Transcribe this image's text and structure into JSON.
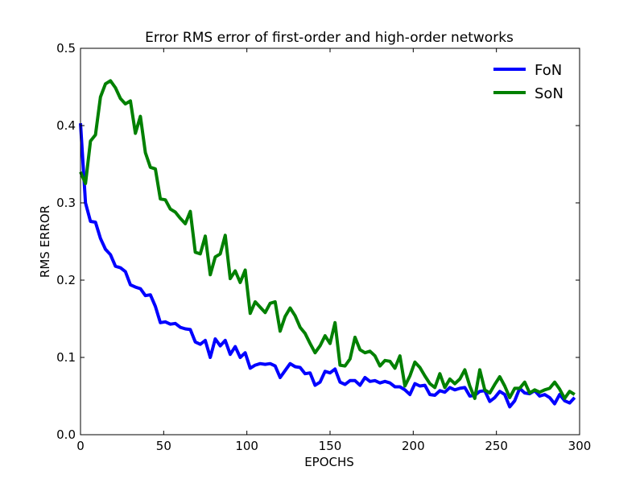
{
  "chart_data": {
    "type": "line",
    "title": "Error RMS error of first-order and high-order networks",
    "xlabel": "EPOCHS",
    "ylabel": "RMS ERROR",
    "xlim": [
      0,
      300
    ],
    "ylim": [
      0,
      0.5
    ],
    "xticks": [
      "0",
      "50",
      "100",
      "150",
      "200",
      "250",
      "300"
    ],
    "yticks": [
      "0.0",
      "0.1",
      "0.2",
      "0.3",
      "0.4",
      "0.5"
    ],
    "grid": false,
    "legend_position": "top-right",
    "series": [
      {
        "name": "FoN",
        "color": "#0000ff",
        "x": [
          0,
          3,
          6,
          9,
          12,
          15,
          18,
          21,
          24,
          27,
          30,
          33,
          36,
          39,
          42,
          45,
          48,
          51,
          54,
          57,
          60,
          63,
          66,
          69,
          72,
          75,
          78,
          81,
          84,
          87,
          90,
          93,
          96,
          99,
          102,
          105,
          108,
          111,
          114,
          117,
          120,
          123,
          126,
          129,
          132,
          135,
          138,
          141,
          144,
          147,
          150,
          153,
          156,
          159,
          162,
          165,
          168,
          171,
          174,
          177,
          180,
          183,
          186,
          189,
          192,
          195,
          198,
          201,
          204,
          207,
          210,
          213,
          216,
          219,
          222,
          225,
          228,
          231,
          234,
          237,
          240,
          243,
          246,
          249,
          252,
          255,
          258,
          261,
          264,
          267,
          270,
          273,
          276,
          279,
          282,
          285,
          288,
          291,
          294,
          297
        ],
        "y": [
          0.403,
          0.3,
          0.276,
          0.275,
          0.254,
          0.24,
          0.233,
          0.218,
          0.216,
          0.211,
          0.194,
          0.191,
          0.189,
          0.18,
          0.181,
          0.166,
          0.145,
          0.146,
          0.143,
          0.144,
          0.139,
          0.137,
          0.136,
          0.12,
          0.117,
          0.122,
          0.1,
          0.124,
          0.115,
          0.122,
          0.104,
          0.114,
          0.1,
          0.106,
          0.086,
          0.09,
          0.092,
          0.091,
          0.092,
          0.089,
          0.074,
          0.083,
          0.092,
          0.088,
          0.087,
          0.079,
          0.08,
          0.064,
          0.068,
          0.082,
          0.08,
          0.085,
          0.068,
          0.065,
          0.07,
          0.07,
          0.064,
          0.074,
          0.069,
          0.07,
          0.067,
          0.069,
          0.067,
          0.062,
          0.062,
          0.058,
          0.052,
          0.066,
          0.063,
          0.064,
          0.052,
          0.051,
          0.057,
          0.055,
          0.061,
          0.058,
          0.06,
          0.061,
          0.05,
          0.051,
          0.056,
          0.057,
          0.043,
          0.048,
          0.056,
          0.052,
          0.036,
          0.044,
          0.06,
          0.054,
          0.053,
          0.057,
          0.05,
          0.052,
          0.048,
          0.04,
          0.052,
          0.044,
          0.041,
          0.048
        ]
      },
      {
        "name": "SoN",
        "color": "#008000",
        "x": [
          0,
          3,
          6,
          9,
          12,
          15,
          18,
          21,
          24,
          27,
          30,
          33,
          36,
          39,
          42,
          45,
          48,
          51,
          54,
          57,
          60,
          63,
          66,
          69,
          72,
          75,
          78,
          81,
          84,
          87,
          90,
          93,
          96,
          99,
          102,
          105,
          108,
          111,
          114,
          117,
          120,
          123,
          126,
          129,
          132,
          135,
          138,
          141,
          144,
          147,
          150,
          153,
          156,
          159,
          162,
          165,
          168,
          171,
          174,
          177,
          180,
          183,
          186,
          189,
          192,
          195,
          198,
          201,
          204,
          207,
          210,
          213,
          216,
          219,
          222,
          225,
          228,
          231,
          234,
          237,
          240,
          243,
          246,
          249,
          252,
          255,
          258,
          261,
          264,
          267,
          270,
          273,
          276,
          279,
          282,
          285,
          288,
          291,
          294,
          297
        ],
        "y": [
          0.34,
          0.325,
          0.38,
          0.388,
          0.437,
          0.454,
          0.458,
          0.449,
          0.435,
          0.428,
          0.432,
          0.39,
          0.412,
          0.365,
          0.346,
          0.344,
          0.305,
          0.304,
          0.292,
          0.288,
          0.28,
          0.273,
          0.289,
          0.236,
          0.234,
          0.257,
          0.207,
          0.23,
          0.234,
          0.258,
          0.202,
          0.212,
          0.197,
          0.213,
          0.157,
          0.172,
          0.165,
          0.158,
          0.17,
          0.172,
          0.134,
          0.153,
          0.164,
          0.154,
          0.139,
          0.131,
          0.118,
          0.106,
          0.115,
          0.128,
          0.118,
          0.145,
          0.09,
          0.089,
          0.098,
          0.126,
          0.11,
          0.106,
          0.108,
          0.102,
          0.089,
          0.096,
          0.095,
          0.086,
          0.102,
          0.063,
          0.076,
          0.094,
          0.087,
          0.076,
          0.066,
          0.061,
          0.079,
          0.061,
          0.072,
          0.066,
          0.072,
          0.084,
          0.063,
          0.047,
          0.084,
          0.058,
          0.054,
          0.065,
          0.075,
          0.063,
          0.048,
          0.06,
          0.06,
          0.068,
          0.054,
          0.058,
          0.055,
          0.058,
          0.06,
          0.068,
          0.059,
          0.047,
          0.056,
          0.052
        ]
      }
    ]
  }
}
